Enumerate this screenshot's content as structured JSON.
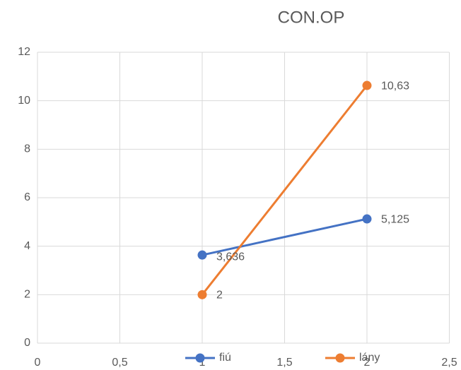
{
  "chart_data": {
    "type": "line",
    "title": "CON.OP",
    "x": [
      1,
      2
    ],
    "series": [
      {
        "name": "fiú",
        "color": "#4472c4",
        "values": [
          3.636,
          5.125
        ],
        "value_labels": [
          "3,636",
          "5,125"
        ]
      },
      {
        "name": "lány",
        "color": "#ed7d31",
        "values": [
          2,
          10.63
        ],
        "value_labels": [
          "2",
          "10,63"
        ]
      }
    ],
    "xlim": [
      0,
      2.5
    ],
    "xticks": [
      0,
      {
        "value": 0.5,
        "label": "0,5"
      },
      1,
      {
        "value": 1.5,
        "label": "1,5"
      },
      2,
      {
        "value": 2.5,
        "label": "2,5"
      }
    ],
    "ylim": [
      0,
      12
    ],
    "yticks": [
      0,
      2,
      4,
      6,
      8,
      10,
      12
    ],
    "grid": true,
    "legend": "bottom"
  }
}
